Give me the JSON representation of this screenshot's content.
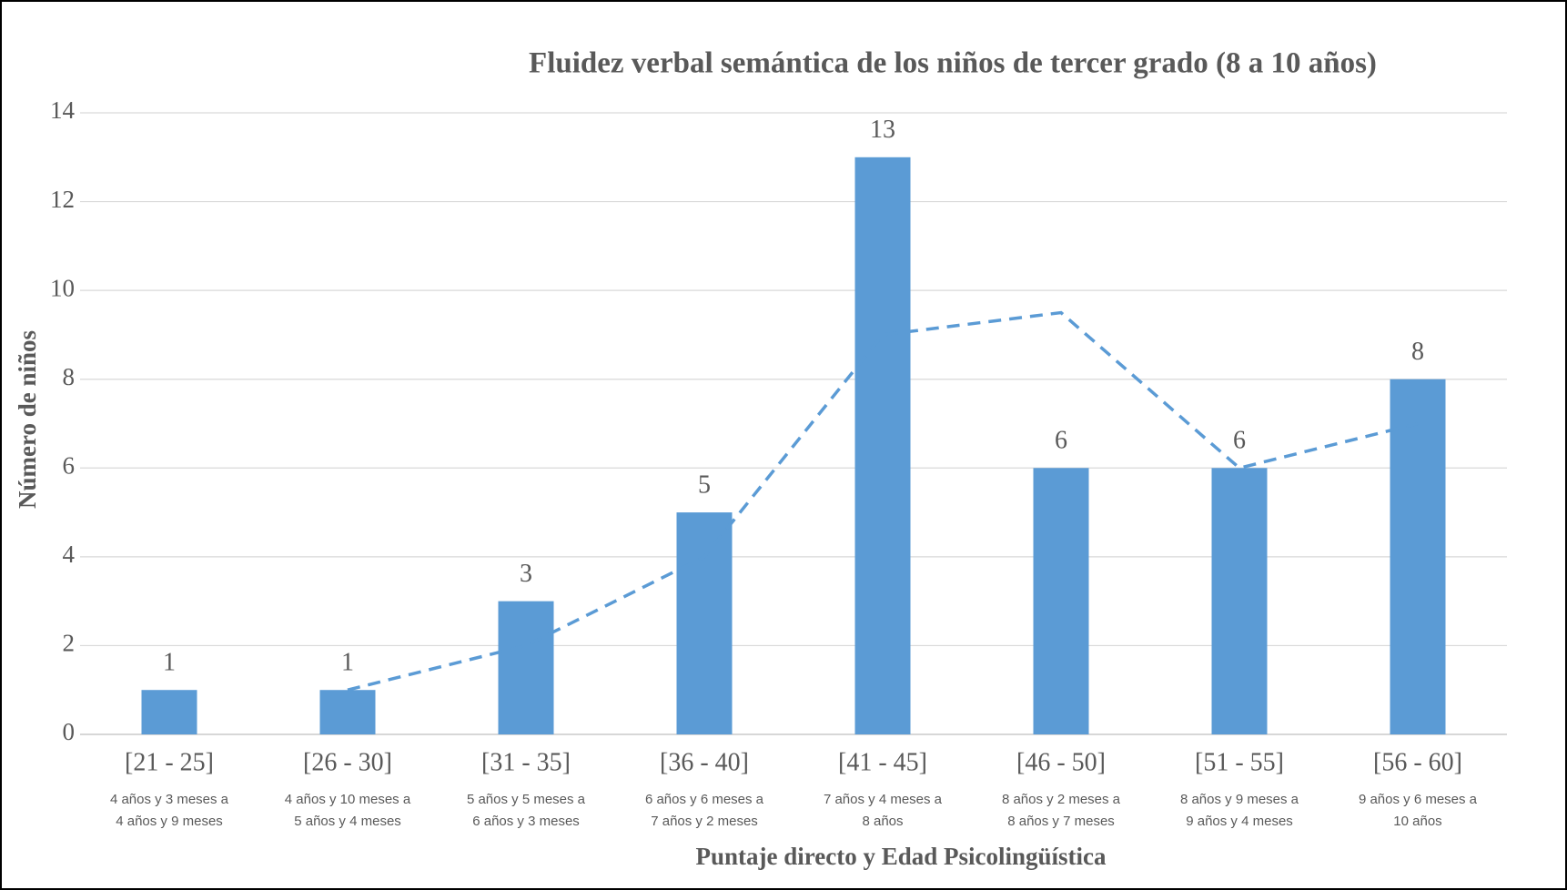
{
  "chart_data": {
    "type": "bar",
    "title": "Fluidez verbal semántica de los niños de tercer grado (8 a 10 años)",
    "x_label": "Puntaje directo y Edad Psicolingüística",
    "y_label": "Número de niños",
    "categories": [
      "[21 - 25]",
      "[26 - 30]",
      "[31 - 35]",
      "[36 - 40]",
      "[41 - 45]",
      "[46 - 50]",
      "[51 - 55]",
      "[56 - 60]"
    ],
    "sublabels": [
      [
        "4 años y 3 meses a",
        "4 años y 9 meses"
      ],
      [
        "4 años y 10  meses a",
        "5 años y  4 meses"
      ],
      [
        "5 años y 5 meses a",
        "6 años y 3 meses"
      ],
      [
        "6 años y 6 meses a",
        "7 años y 2 meses"
      ],
      [
        "7 años y 4 meses a",
        "8 años"
      ],
      [
        "8 años y 2 meses a",
        "8 años y 7 meses"
      ],
      [
        "8 años y 9 meses a",
        "9 años y 4 meses"
      ],
      [
        "9 años y 6 meses a",
        "10 años"
      ]
    ],
    "values": [
      1,
      1,
      3,
      5,
      13,
      6,
      6,
      8
    ],
    "color": "#5b9bd5",
    "trend": {
      "values": [
        null,
        1,
        2,
        4,
        9,
        9.5,
        6,
        7
      ],
      "color": "#5b9bd5"
    },
    "ylim": [
      0,
      14
    ],
    "yticks": [
      0,
      2,
      4,
      6,
      8,
      10,
      12,
      14
    ],
    "grid": true
  }
}
